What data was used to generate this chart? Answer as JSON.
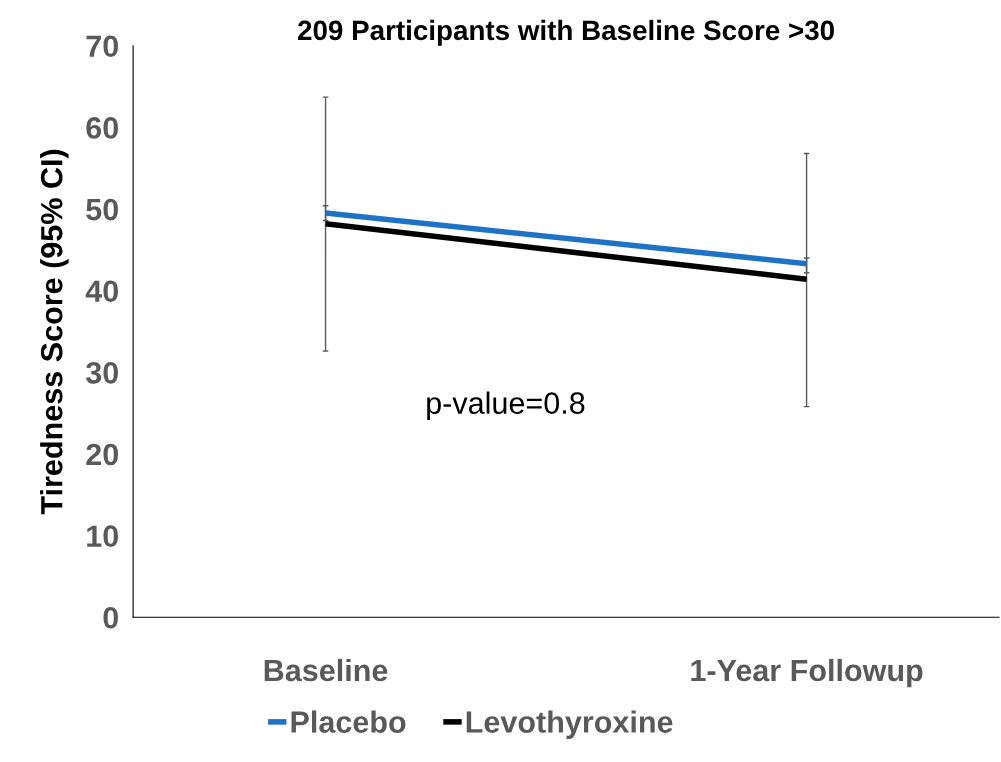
{
  "chart_data": {
    "type": "line",
    "title": "209 Participants with Baseline Score >30",
    "ylabel": "Tiredness Score (95% CI)",
    "categories": [
      "Baseline",
      "1-Year Followup"
    ],
    "series": [
      {
        "name": "Placebo",
        "color": "#1f73c6",
        "values": [
          49.5,
          43.3
        ],
        "errors": [
          [
            48.6,
            50.4
          ],
          [
            42.2,
            44.0
          ]
        ]
      },
      {
        "name": "Levothyroxine",
        "color": "#000000",
        "values": [
          48.2,
          41.4
        ],
        "errors": [
          [
            32.6,
            63.7
          ],
          [
            25.8,
            56.8
          ]
        ]
      }
    ],
    "ylim": [
      0,
      70
    ],
    "yticks": [
      0,
      10,
      20,
      30,
      40,
      50,
      60,
      70
    ],
    "annotations": [
      "p-value=0.8"
    ],
    "grid": false,
    "legend": "bottom",
    "marker": "none",
    "line_style": "solid"
  }
}
